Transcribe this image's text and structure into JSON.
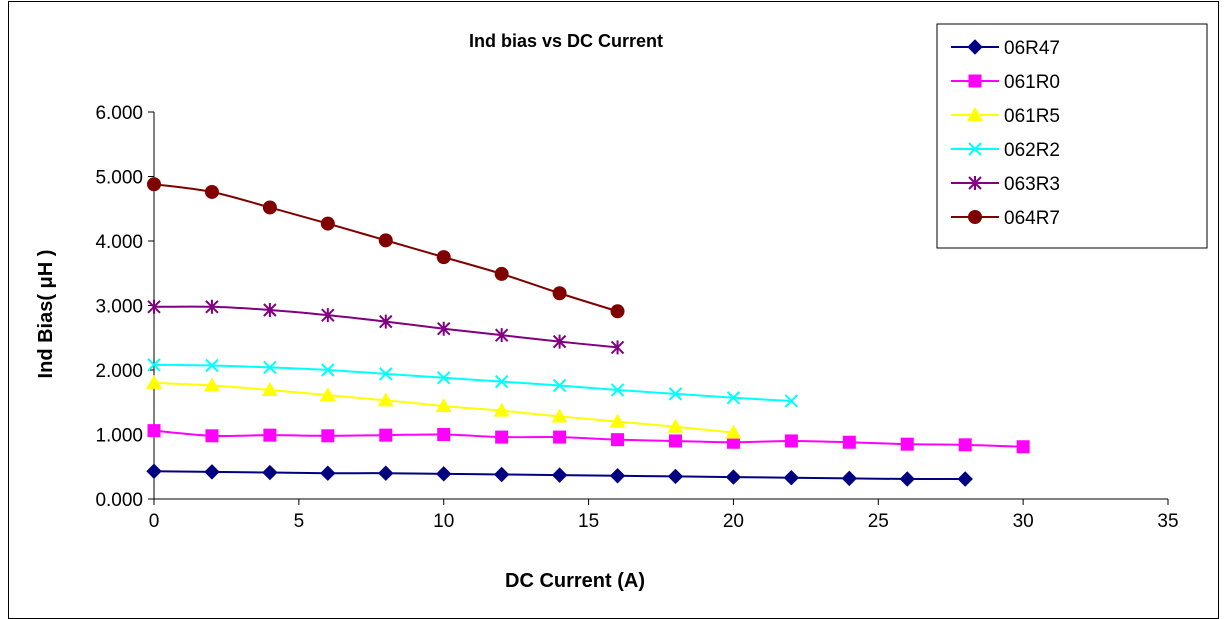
{
  "chart_data": {
    "type": "line",
    "title": "Ind bias vs DC Current",
    "xlabel": "DC Current (A)",
    "ylabel": "Ind Bias( μH )",
    "xlim": [
      0,
      35
    ],
    "ylim": [
      0,
      6
    ],
    "x_ticks": [
      "0",
      "5",
      "10",
      "15",
      "20",
      "25",
      "30",
      "35"
    ],
    "y_ticks": [
      "0.000",
      "1.000",
      "2.000",
      "3.000",
      "4.000",
      "5.000",
      "6.000"
    ],
    "grid": false,
    "legend_position": "top-right",
    "series": [
      {
        "name": "06R47",
        "color": "#000080",
        "marker": "diamond",
        "x": [
          0,
          2,
          4,
          6,
          8,
          10,
          12,
          14,
          16,
          18,
          20,
          22,
          24,
          26,
          28
        ],
        "y": [
          0.43,
          0.42,
          0.41,
          0.4,
          0.4,
          0.39,
          0.38,
          0.37,
          0.36,
          0.35,
          0.34,
          0.33,
          0.32,
          0.31,
          0.31
        ]
      },
      {
        "name": "061R0",
        "color": "#ff00ff",
        "marker": "square",
        "x": [
          0,
          2,
          4,
          6,
          8,
          10,
          12,
          14,
          16,
          18,
          20,
          22,
          24,
          26,
          28,
          30
        ],
        "y": [
          1.06,
          0.98,
          0.99,
          0.98,
          0.99,
          1.0,
          0.96,
          0.96,
          0.92,
          0.9,
          0.88,
          0.9,
          0.88,
          0.85,
          0.84,
          0.81
        ]
      },
      {
        "name": "061R5",
        "color": "#ffff00",
        "marker": "triangle",
        "x": [
          0,
          2,
          4,
          6,
          8,
          10,
          12,
          14,
          16,
          18,
          20
        ],
        "y": [
          1.8,
          1.76,
          1.69,
          1.61,
          1.53,
          1.44,
          1.37,
          1.28,
          1.2,
          1.12,
          1.03
        ]
      },
      {
        "name": "062R2",
        "color": "#00ffff",
        "marker": "x",
        "x": [
          0,
          2,
          4,
          6,
          8,
          10,
          12,
          14,
          16,
          18,
          20,
          22
        ],
        "y": [
          2.08,
          2.07,
          2.04,
          2.0,
          1.94,
          1.88,
          1.82,
          1.76,
          1.69,
          1.63,
          1.57,
          1.52
        ]
      },
      {
        "name": "063R3",
        "color": "#800080",
        "marker": "star",
        "x": [
          0,
          2,
          4,
          6,
          8,
          10,
          12,
          14,
          16
        ],
        "y": [
          2.98,
          2.98,
          2.93,
          2.85,
          2.75,
          2.64,
          2.54,
          2.44,
          2.35
        ]
      },
      {
        "name": "064R7",
        "color": "#800000",
        "marker": "circle",
        "x": [
          0,
          2,
          4,
          6,
          8,
          10,
          12,
          14,
          16
        ],
        "y": [
          4.88,
          4.76,
          4.52,
          4.27,
          4.01,
          3.75,
          3.49,
          3.19,
          2.91
        ]
      }
    ]
  }
}
